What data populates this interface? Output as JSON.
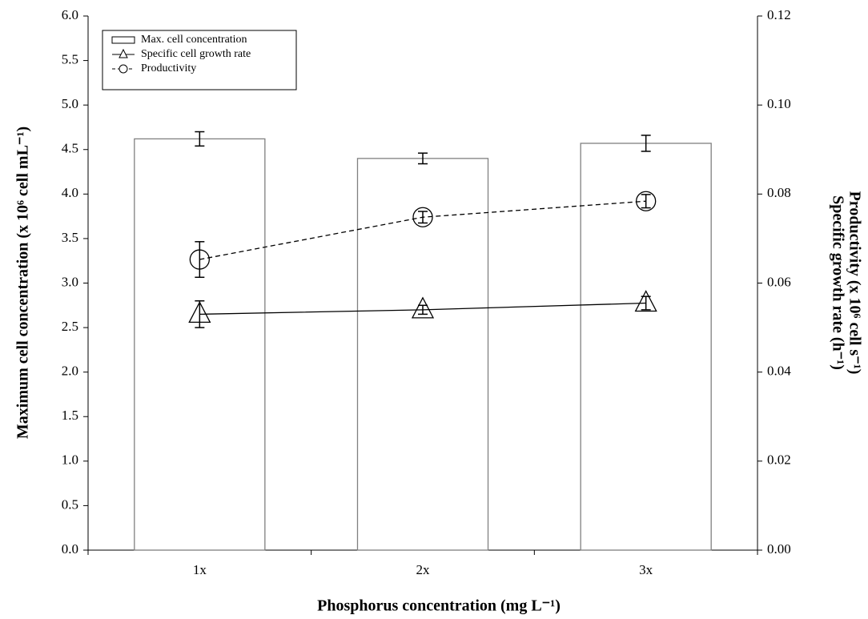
{
  "chart_data": {
    "type": "bar",
    "x_label": "Phosphorus concentration (mg L⁻¹)",
    "y_label": "Maximum cell concentration (x 10⁶ cell mL⁻¹)",
    "y2_labels": [
      "Productivity (x 10⁶ cell s⁻¹)",
      "Specific growth rate (h⁻¹)"
    ],
    "categories": [
      "1x",
      "2x",
      "3x"
    ],
    "series": [
      {
        "name": "Max. cell concentration",
        "type": "bar",
        "color": "#808080",
        "values": [
          4.62,
          4.4,
          4.57
        ],
        "errors": [
          0.08,
          0.06,
          0.09
        ]
      },
      {
        "name": "Specific cell growth rate",
        "type": "line",
        "marker": "triangle",
        "dash": false,
        "axis": "y2",
        "color": "#000000",
        "values": [
          0.053,
          0.054,
          0.0555
        ],
        "errors": [
          0.003,
          0.001,
          0.0015
        ]
      },
      {
        "name": "Productivity",
        "type": "line",
        "marker": "circle",
        "dash": true,
        "axis": "y2",
        "color": "#000000",
        "values": [
          0.0653,
          0.0748,
          0.0784
        ],
        "errors": [
          0.004,
          0.0013,
          0.0015
        ]
      }
    ],
    "ylim": [
      0,
      6
    ],
    "yticks": [
      {
        "value": 0,
        "label": "0.0"
      },
      0.5,
      {
        "value": 1,
        "label": "1.0"
      },
      1.5,
      {
        "value": 2,
        "label": "2.0"
      },
      2.5,
      {
        "value": 3,
        "label": "3.0"
      },
      3.5,
      {
        "value": 4,
        "label": "4.0"
      },
      4.5,
      {
        "value": 5,
        "label": "5.0"
      },
      5.5,
      {
        "value": 6,
        "label": "6.0"
      }
    ],
    "y2lim": [
      0,
      0.12
    ],
    "y2ticks": [
      {
        "value": 0,
        "label": "0.00"
      },
      0.02,
      0.04,
      0.06,
      0.08,
      {
        "value": 0.1,
        "label": "0.10"
      },
      0.12
    ],
    "legend": "upper-left",
    "grid": false
  }
}
